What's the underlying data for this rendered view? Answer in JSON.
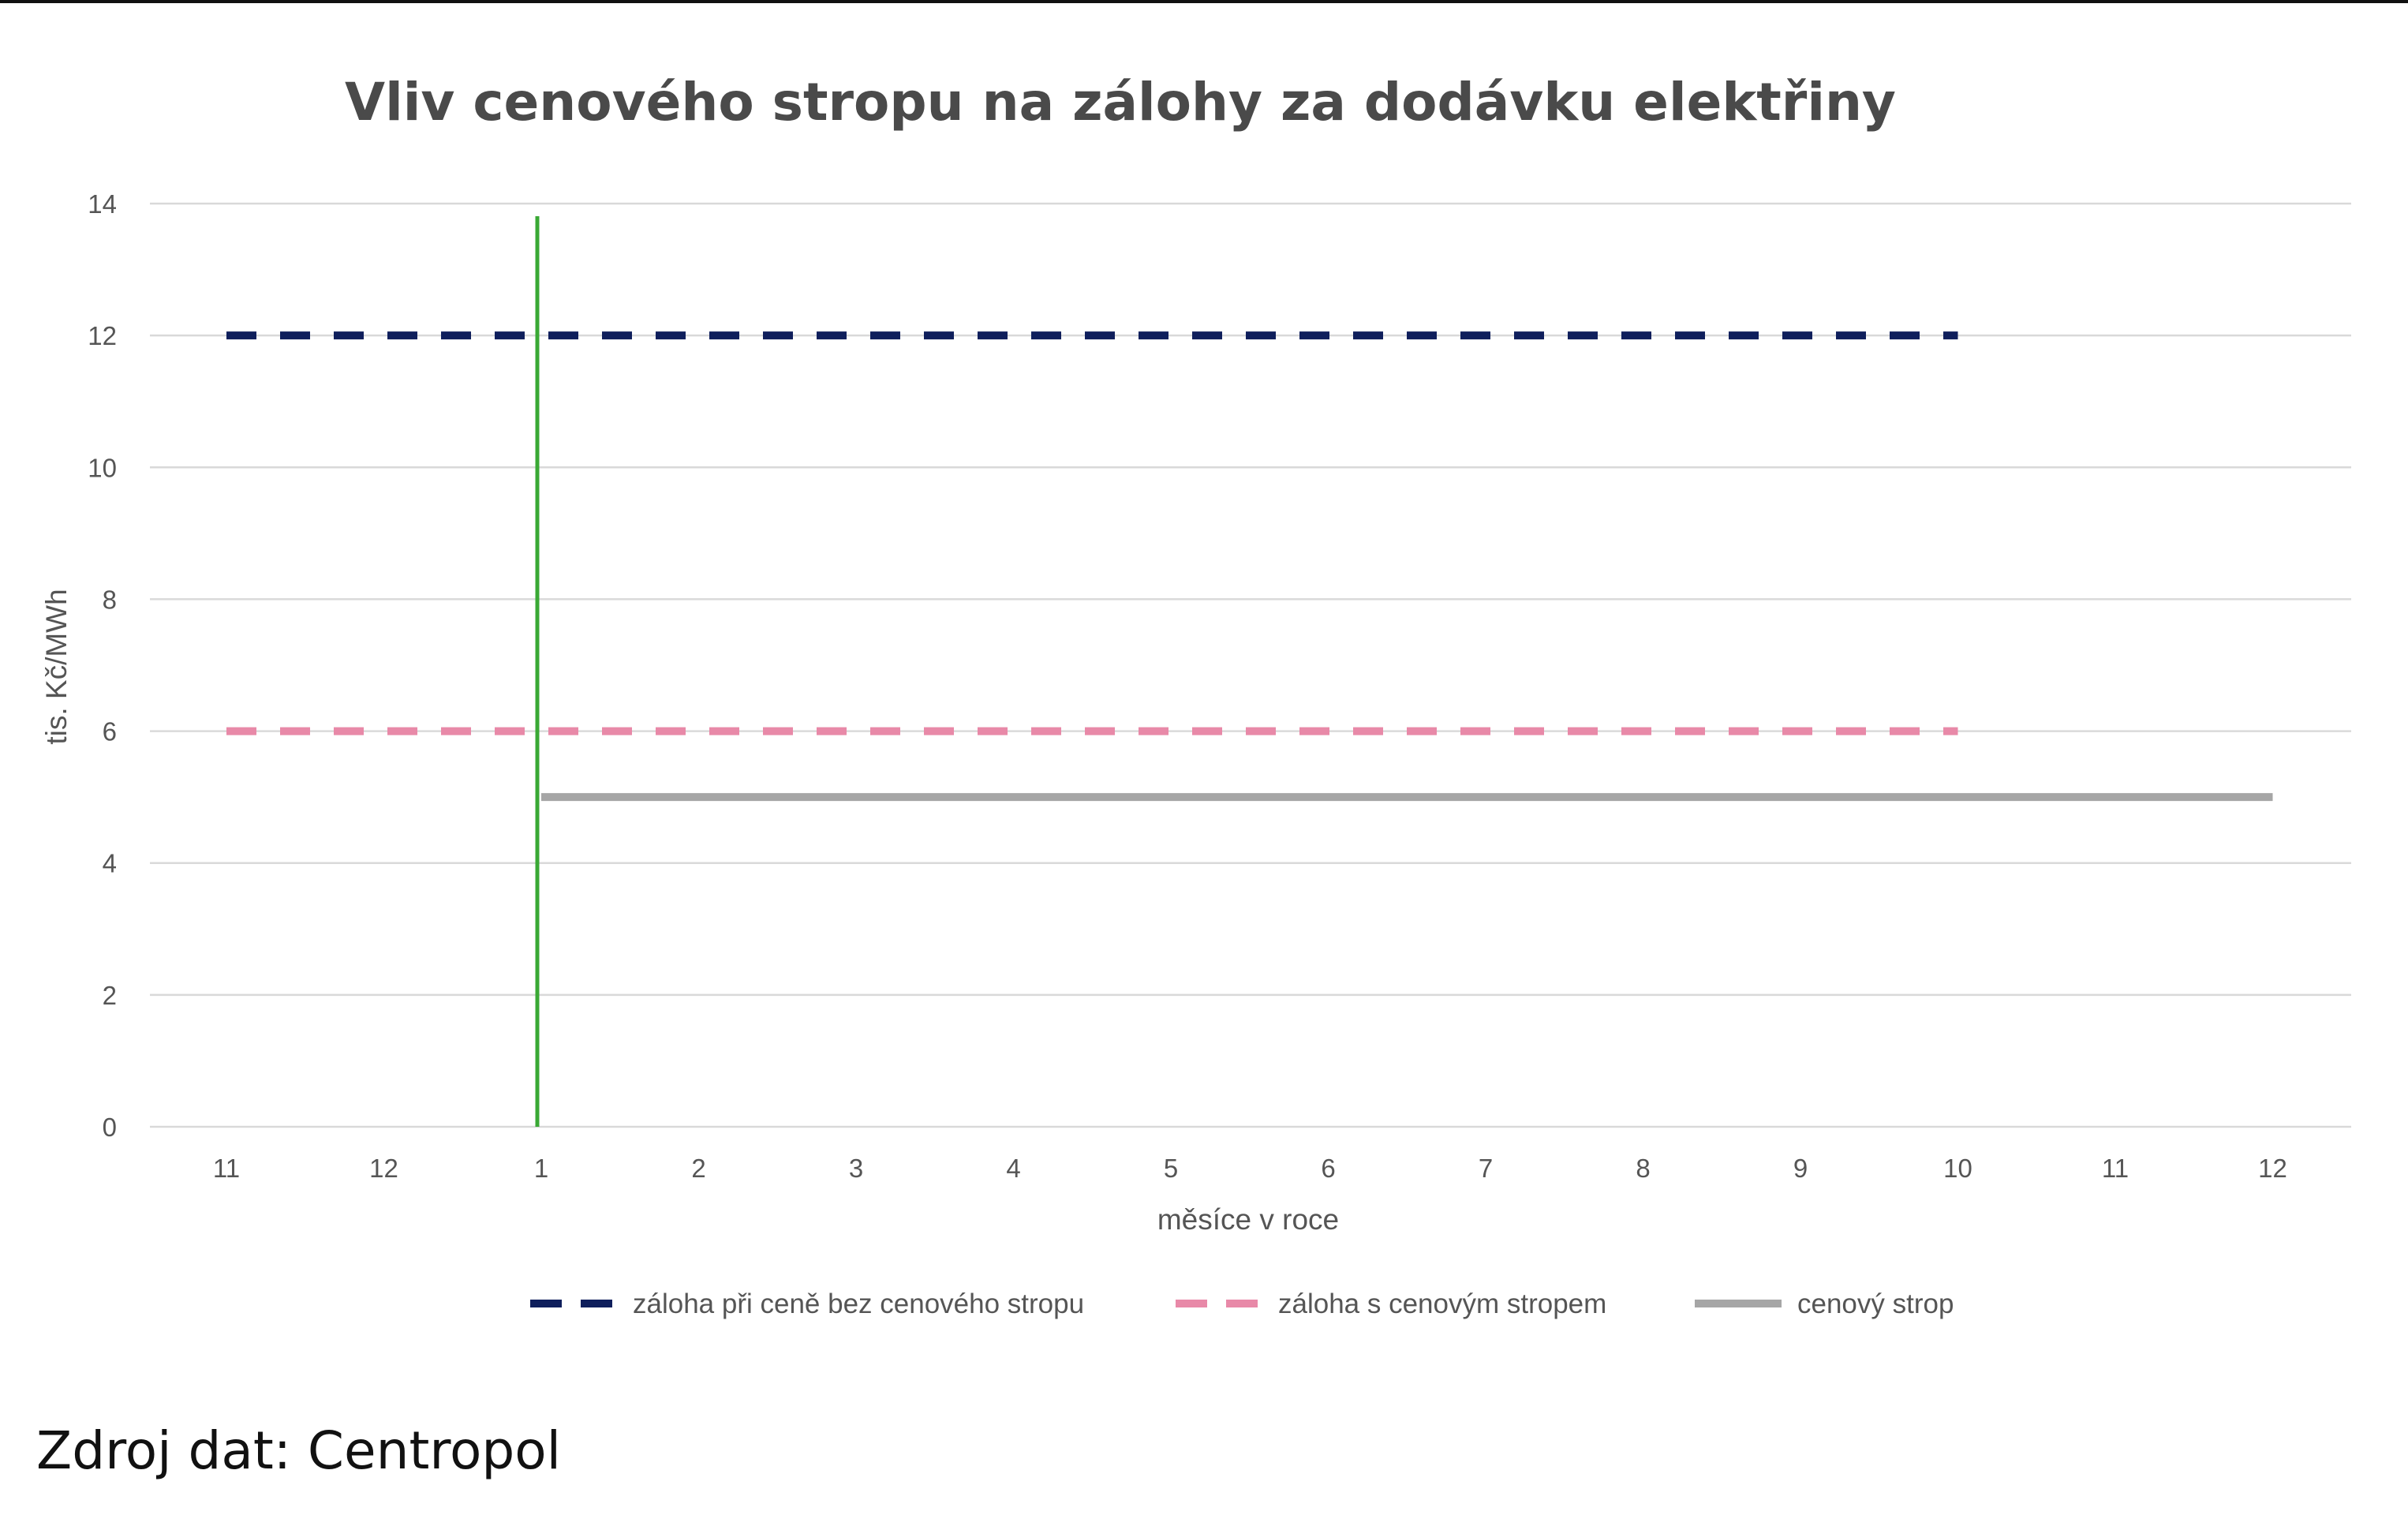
{
  "chart_data": {
    "type": "line",
    "title": "Vliv cenového stropu na zálohy za dodávku elektřiny",
    "xlabel": "měsíce v roce",
    "ylabel": "tis. Kč/MWh",
    "ylim": [
      0,
      14
    ],
    "yticks": [
      0,
      2,
      4,
      6,
      8,
      10,
      12,
      14
    ],
    "categories": [
      "11",
      "12",
      "1",
      "2",
      "3",
      "4",
      "5",
      "6",
      "7",
      "8",
      "9",
      "10",
      "11",
      "12"
    ],
    "grid": true,
    "legend_position": "bottom",
    "marker_line": {
      "category_index": 2,
      "color": "#3aa935"
    },
    "series": [
      {
        "name": "záloha při ceně bez cenového stropu",
        "style": "dashed",
        "color": "#0f1f5c",
        "values": [
          12,
          12,
          12,
          12,
          12,
          12,
          12,
          12,
          12,
          12,
          12,
          12,
          null,
          null
        ]
      },
      {
        "name": "záloha s cenovým stropem",
        "style": "dashed",
        "color": "#e889a8",
        "values": [
          6,
          6,
          6,
          6,
          6,
          6,
          6,
          6,
          6,
          6,
          6,
          6,
          null,
          null
        ]
      },
      {
        "name": "cenový strop",
        "style": "solid",
        "color": "#a6a6a6",
        "values": [
          null,
          null,
          5,
          5,
          5,
          5,
          5,
          5,
          5,
          5,
          5,
          5,
          5,
          5
        ]
      }
    ]
  },
  "source_text": "Zdroj dat: Centropol"
}
